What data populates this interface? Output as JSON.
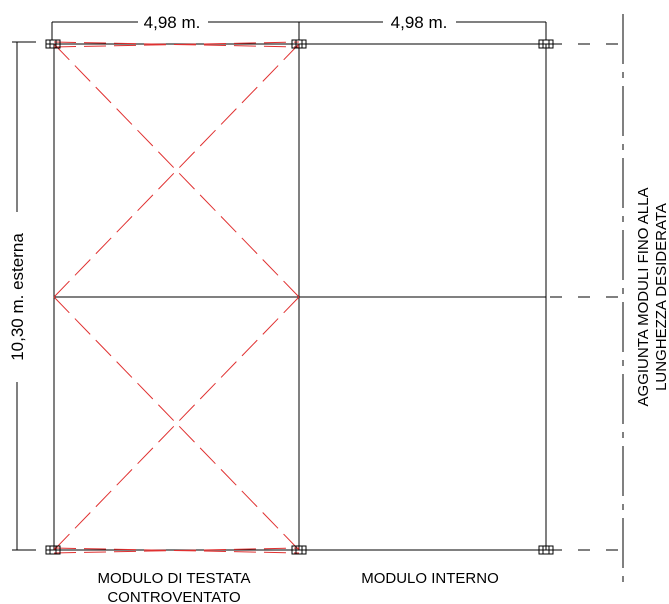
{
  "drawing": {
    "dimension_width_1": "4,98 m.",
    "dimension_width_2": "4,98 m.",
    "dimension_height": "10,30  m. esterna",
    "label_left_line1": "MODULO DI TESTATA",
    "label_left_line2": "CONTROVENTATO",
    "label_right": "MODULO INTERNO",
    "side_note_line1": "AGGIUNTA MODULI FINO ALLA",
    "side_note_line2": "LUNGHEZZA DESIDERATA",
    "colors": {
      "structure": "#000000",
      "bracing": "#e03030"
    }
  }
}
